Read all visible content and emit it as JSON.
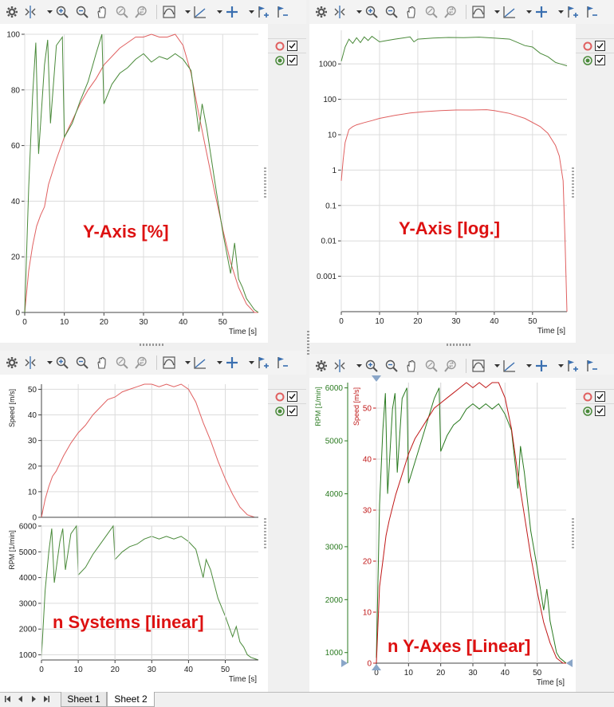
{
  "charts": {
    "tl": {
      "label": "Y-Axis [%]",
      "xlabel": "Time [s]"
    },
    "tr": {
      "label": "Y-Axis [log.]",
      "xlabel": "Time [s]"
    },
    "bl": {
      "label": "n Systems [linear]",
      "xlabel": "Time [s]",
      "speed_label": "Speed [m/s]",
      "rpm_label": "RPM [1/min]"
    },
    "br": {
      "label": "n Y-Axes [Linear]",
      "xlabel": "Time [s]",
      "speed_label": "Speed [m/s]",
      "rpm_label": "RPM [1/min]"
    }
  },
  "tabs": [
    "Sheet 1",
    "Sheet 2"
  ],
  "colors": {
    "speed": "#e06060",
    "rpm": "#4a8a3a",
    "rpm_dark": "#2a7a20",
    "speed_dark": "#c01818",
    "label": "#dd1111"
  },
  "icons": [
    "gear-icon",
    "cursor-icon",
    "zoom-in-icon",
    "zoom-out-icon",
    "pan-hand-icon",
    "zoom-reset-icon",
    "zoom-history-icon",
    "chart-type-icon",
    "axis-icon",
    "crosshair-icon",
    "flag-add-icon",
    "flag-remove-icon"
  ],
  "chart_data": [
    {
      "type": "line",
      "title": "",
      "label": "Y-Axis [%]",
      "xlabel": "Time [s]",
      "ylabel": "",
      "xlim": [
        0,
        59
      ],
      "ylim": [
        0,
        100
      ],
      "xticks": [
        0,
        10,
        20,
        30,
        40,
        50
      ],
      "yticks": [
        0,
        20,
        40,
        60,
        80,
        100
      ],
      "grid": true,
      "series": [
        {
          "color": "#e06060",
          "x": [
            0,
            1,
            2,
            3,
            4,
            5,
            6,
            8,
            10,
            12,
            14,
            16,
            18,
            20,
            22,
            24,
            26,
            28,
            30,
            32,
            34,
            36,
            38,
            40,
            42,
            44,
            46,
            48,
            50,
            52,
            54,
            56,
            58,
            59
          ],
          "y": [
            0,
            15,
            24,
            31,
            35,
            38,
            46,
            55,
            63,
            69,
            75,
            80,
            84,
            89,
            92,
            95,
            97,
            99,
            99,
            100,
            99,
            99,
            100,
            96,
            86,
            71,
            57,
            43,
            30,
            18,
            9,
            3,
            0,
            0
          ]
        },
        {
          "color": "#4a8a3a",
          "x": [
            0,
            1,
            2,
            2.8,
            3.5,
            5,
            5.8,
            6.5,
            8,
            9.5,
            10,
            12,
            14,
            16,
            18,
            19.5,
            20,
            22,
            24,
            26,
            28,
            30,
            32,
            34,
            36,
            38,
            40,
            42,
            44,
            44.8,
            46,
            48,
            50,
            52,
            53,
            54,
            55,
            56,
            57,
            58,
            59
          ],
          "y": [
            0,
            45,
            78,
            97,
            57,
            89,
            98,
            68,
            96,
            99,
            63,
            68,
            76,
            83,
            93,
            100,
            75,
            82,
            86,
            88,
            91,
            93,
            90,
            92,
            91,
            93,
            91,
            87,
            65,
            75,
            66,
            47,
            29,
            14,
            25,
            12,
            9,
            5,
            3,
            1,
            0
          ]
        }
      ]
    },
    {
      "type": "line",
      "title": "",
      "label": "Y-Axis [log.]",
      "xlabel": "Time [s]",
      "ylabel": "",
      "scale": "log",
      "xlim": [
        0,
        59
      ],
      "yticks": [
        "0.001",
        "0.01",
        "0.1",
        "1",
        "10",
        "100",
        "1000"
      ],
      "xticks": [
        0,
        10,
        20,
        30,
        40,
        50
      ],
      "grid": true,
      "series": [
        {
          "color": "#e06060",
          "x": [
            0,
            0.5,
            1,
            2,
            3,
            4,
            6,
            8,
            10,
            14,
            18,
            22,
            26,
            30,
            34,
            38,
            40,
            44,
            48,
            52,
            54,
            56,
            57,
            58,
            58.5,
            59
          ],
          "y": [
            0.5,
            2,
            6,
            14,
            17,
            19,
            22,
            25,
            29,
            35,
            41,
            45,
            48,
            50,
            50,
            51,
            48,
            40,
            29,
            17,
            11,
            5,
            2.5,
            0.5,
            0.01,
            0.0001
          ]
        },
        {
          "color": "#4a8a3a",
          "x": [
            0,
            1,
            2,
            3,
            4,
            5,
            6,
            7,
            8,
            10,
            12,
            14,
            16,
            18,
            19,
            20,
            24,
            28,
            32,
            36,
            40,
            44,
            48,
            50,
            52,
            54,
            56,
            58,
            59
          ],
          "y": [
            1200,
            3000,
            5000,
            3800,
            5500,
            4000,
            5800,
            4600,
            6000,
            4200,
            4600,
            5000,
            5400,
            5800,
            4200,
            5000,
            5400,
            5600,
            5500,
            5700,
            5400,
            5000,
            3300,
            3000,
            2000,
            1600,
            1100,
            950,
            880
          ]
        }
      ]
    },
    {
      "type": "line",
      "title": "",
      "label": "n Systems [linear]",
      "xlabel": "Time [s]",
      "xlim": [
        0,
        59
      ],
      "xticks": [
        0,
        10,
        20,
        30,
        40,
        50
      ],
      "subplots": [
        {
          "ylabel": "Speed [m/s]",
          "ylim": [
            0,
            52
          ],
          "yticks": [
            0,
            10,
            20,
            30,
            40,
            50
          ],
          "series": [
            {
              "color": "#e06060",
              "x": [
                0,
                1,
                2,
                3,
                4,
                6,
                8,
                10,
                12,
                14,
                16,
                18,
                20,
                22,
                24,
                26,
                28,
                30,
                32,
                34,
                36,
                38,
                40,
                42,
                44,
                46,
                48,
                50,
                52,
                54,
                56,
                58,
                59
              ],
              "y": [
                0,
                7,
                12,
                16,
                18,
                24,
                29,
                33,
                36,
                40,
                43,
                46,
                47,
                49,
                50,
                51,
                52,
                52,
                51,
                52,
                51,
                52,
                50,
                45,
                37,
                30,
                22,
                15,
                9,
                4,
                1,
                0,
                0
              ]
            }
          ]
        },
        {
          "ylabel": "RPM [1/min]",
          "ylim": [
            800,
            6000
          ],
          "yticks": [
            1000,
            2000,
            3000,
            4000,
            5000,
            6000
          ],
          "series": [
            {
              "color": "#4a8a3a",
              "x": [
                0,
                1,
                2,
                2.8,
                3.5,
                5,
                5.8,
                6.5,
                8,
                9.5,
                10,
                12,
                14,
                16,
                18,
                19.5,
                20,
                22,
                24,
                26,
                28,
                30,
                32,
                34,
                36,
                38,
                40,
                42,
                44,
                44.8,
                46,
                48,
                50,
                52,
                53,
                54,
                55,
                56,
                57,
                58,
                59
              ],
              "y": [
                900,
                3500,
                5000,
                5900,
                3800,
                5400,
                5900,
                4300,
                5700,
                6000,
                4100,
                4400,
                4900,
                5300,
                5700,
                6000,
                4700,
                5000,
                5200,
                5300,
                5500,
                5600,
                5500,
                5600,
                5500,
                5600,
                5400,
                5100,
                4000,
                4700,
                4300,
                3200,
                2500,
                1700,
                2100,
                1500,
                1300,
                1000,
                900,
                850,
                800
              ]
            }
          ]
        }
      ]
    },
    {
      "type": "line",
      "title": "",
      "label": "n Y-Axes [Linear]",
      "xlabel": "Time [s]",
      "xlim": [
        0,
        59
      ],
      "xticks": [
        0,
        10,
        20,
        30,
        40,
        50
      ],
      "axes": [
        {
          "ylabel": "RPM [1/min]",
          "side": "left-outer",
          "ylim": [
            800,
            6100
          ],
          "yticks": [
            1000,
            2000,
            3000,
            4000,
            5000,
            6000
          ]
        },
        {
          "ylabel": "Speed [m/s]",
          "side": "left-inner",
          "ylim": [
            0,
            55
          ],
          "yticks": [
            0,
            10,
            20,
            30,
            40,
            50
          ]
        }
      ],
      "series": [
        {
          "axis": "Speed [m/s]",
          "color": "#c01818",
          "x": [
            0,
            1,
            2,
            3,
            4,
            6,
            8,
            10,
            12,
            14,
            16,
            18,
            20,
            22,
            24,
            26,
            28,
            30,
            32,
            34,
            36,
            38,
            40,
            42,
            44,
            46,
            48,
            50,
            52,
            54,
            56,
            58,
            59
          ],
          "y": [
            0,
            15,
            20,
            25,
            28,
            33,
            37,
            41,
            44,
            46,
            48,
            50,
            51,
            52,
            53,
            54,
            55,
            54,
            55,
            54,
            55,
            55,
            52,
            46,
            37,
            29,
            21,
            14,
            8,
            4,
            1,
            0,
            0
          ]
        },
        {
          "axis": "RPM [1/min]",
          "color": "#2a7a20",
          "x": [
            0,
            1,
            2,
            2.8,
            3.5,
            5,
            5.8,
            6.5,
            8,
            9.5,
            10,
            12,
            14,
            16,
            18,
            19.5,
            20,
            22,
            24,
            26,
            28,
            30,
            32,
            34,
            36,
            38,
            40,
            42,
            44,
            44.8,
            46,
            48,
            50,
            52,
            53,
            54,
            55,
            56,
            57,
            58,
            59
          ],
          "y": [
            900,
            3800,
            5200,
            5900,
            4000,
            5600,
            5900,
            4400,
            5800,
            6000,
            4200,
            4600,
            5000,
            5400,
            5800,
            6000,
            4800,
            5100,
            5300,
            5400,
            5600,
            5700,
            5600,
            5700,
            5600,
            5700,
            5500,
            5200,
            4100,
            4900,
            4400,
            3300,
            2600,
            1800,
            2200,
            1600,
            1300,
            1000,
            900,
            850,
            800
          ]
        }
      ]
    }
  ]
}
